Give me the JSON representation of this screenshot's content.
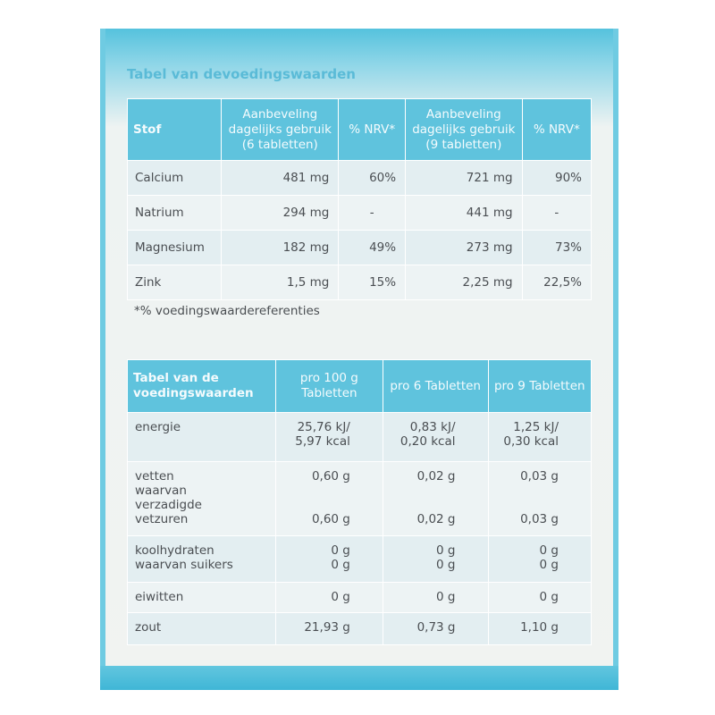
{
  "table1": {
    "title": "Tabel van devoedingswaarden",
    "header": [
      "Stof",
      "Aanbeveling dagelijks gebruik (6 tabletten)",
      "% NRV*",
      "Aanbeveling dagelijks gebruik (9 tabletten)",
      "% NRV*"
    ],
    "rows": [
      [
        "Calcium",
        "481 mg",
        "60%",
        "721 mg",
        "90%"
      ],
      [
        "Natrium",
        "294 mg",
        "-",
        "441 mg",
        "-"
      ],
      [
        "Magnesium",
        "182 mg",
        "49%",
        "273 mg",
        "73%"
      ],
      [
        "Zink",
        "1,5 mg",
        "15%",
        "2,25 mg",
        "22,5%"
      ]
    ],
    "footnote": "*% voedingswaardereferenties"
  },
  "table2": {
    "header": [
      "Tabel van de voedingswaarden",
      "pro 100 g Tabletten",
      "pro 6 Tabletten",
      "pro 9 Tabletten"
    ],
    "rows": [
      [
        [
          "energie"
        ],
        [
          "25,76 kJ/",
          "5,97 kcal"
        ],
        [
          "0,83 kJ/",
          "0,20 kcal"
        ],
        [
          "1,25 kJ/",
          "0,30 kcal"
        ]
      ],
      [
        [
          "vetten",
          "waarvan",
          "verzadigde",
          "vetzuren"
        ],
        [
          "0,60 g",
          "0,60 g"
        ],
        [
          "0,02 g",
          "0,02 g"
        ],
        [
          "0,03 g",
          "0,03 g"
        ]
      ],
      [
        [
          "koolhydraten",
          "waarvan suikers"
        ],
        [
          "0 g",
          "0 g"
        ],
        [
          "0 g",
          "0 g"
        ],
        [
          "0 g",
          "0 g"
        ]
      ],
      [
        [
          "eiwitten"
        ],
        [
          "0 g"
        ],
        [
          "0 g"
        ],
        [
          "0 g"
        ]
      ],
      [
        [
          "zout"
        ],
        [
          "21,93 g"
        ],
        [
          "0,73 g"
        ],
        [
          "1,10 g"
        ]
      ]
    ]
  }
}
